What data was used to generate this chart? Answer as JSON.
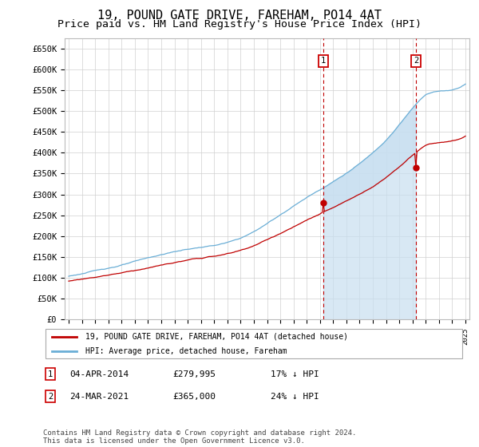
{
  "title": "19, POUND GATE DRIVE, FAREHAM, PO14 4AT",
  "subtitle": "Price paid vs. HM Land Registry's House Price Index (HPI)",
  "title_fontsize": 11,
  "subtitle_fontsize": 9.5,
  "ylabel_ticks": [
    "£0",
    "£50K",
    "£100K",
    "£150K",
    "£200K",
    "£250K",
    "£300K",
    "£350K",
    "£400K",
    "£450K",
    "£500K",
    "£550K",
    "£600K",
    "£650K"
  ],
  "ytick_values": [
    0,
    50000,
    100000,
    150000,
    200000,
    250000,
    300000,
    350000,
    400000,
    450000,
    500000,
    550000,
    600000,
    650000
  ],
  "ylim": [
    0,
    675000
  ],
  "x_start_year": 1995,
  "x_end_year": 2025,
  "hpi_color": "#6aaed6",
  "hpi_fill_color": "#c8dff0",
  "price_color": "#c00000",
  "grid_color": "#d0d0d0",
  "plot_bg_color": "#ffffff",
  "marker1_year": 2014.25,
  "marker1_price": 279995,
  "marker1_label": "1",
  "marker1_date": "04-APR-2014",
  "marker1_pct": "17% ↓ HPI",
  "marker2_year": 2021.25,
  "marker2_price": 365000,
  "marker2_label": "2",
  "marker2_date": "24-MAR-2021",
  "marker2_pct": "24% ↓ HPI",
  "legend_line1": "19, POUND GATE DRIVE, FAREHAM, PO14 4AT (detached house)",
  "legend_line2": "HPI: Average price, detached house, Fareham",
  "footnote": "Contains HM Land Registry data © Crown copyright and database right 2024.\nThis data is licensed under the Open Government Licence v3.0.",
  "background_color": "#ffffff"
}
